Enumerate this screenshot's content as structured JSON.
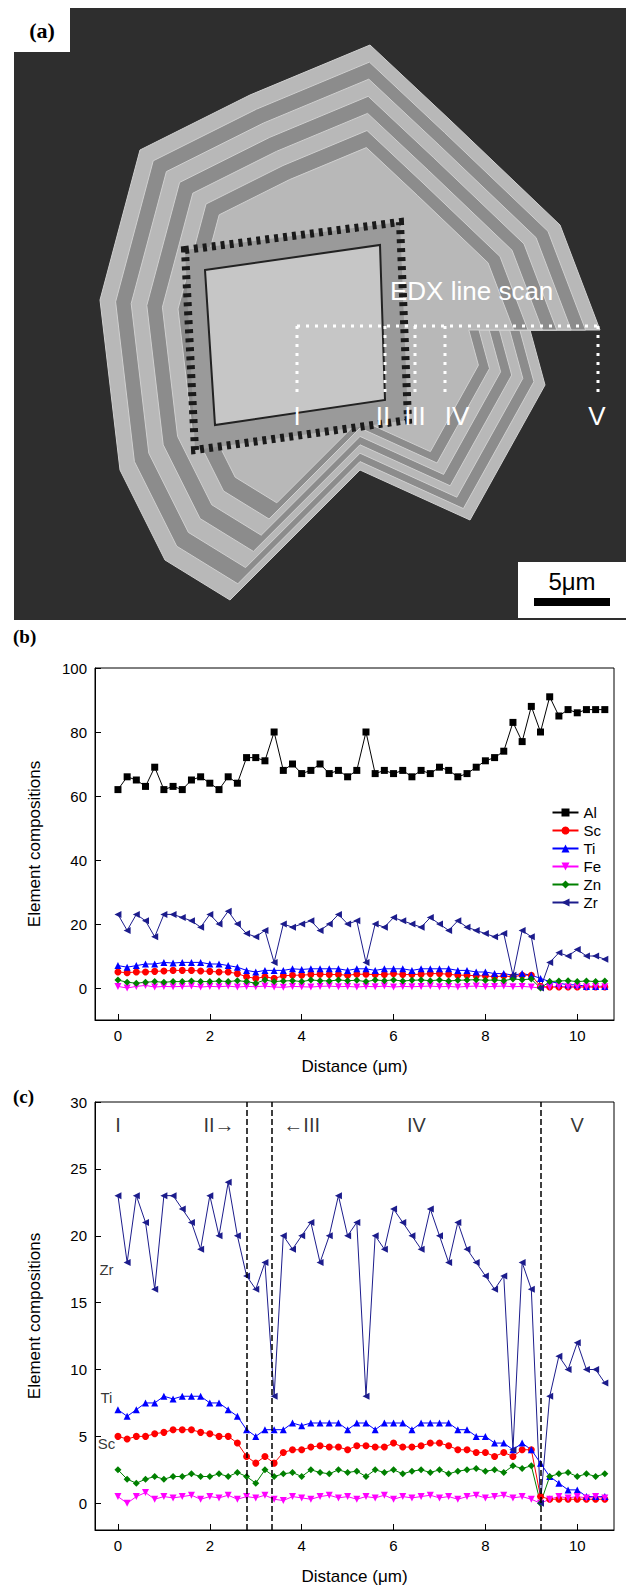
{
  "panel_a": {
    "label": "(a)",
    "annotation": "EDX line scan",
    "line_scan_points": [
      "I",
      "II",
      "III",
      "IV",
      "V"
    ],
    "scale_bar": "5μm"
  },
  "chart_data": [
    {
      "type": "line",
      "title": "(b)",
      "x_label": "Distance (μm)",
      "y_label": "Element compositions",
      "xlim": [
        -0.5,
        10.8
      ],
      "xticks": [
        0,
        2,
        4,
        6,
        8,
        10
      ],
      "ylim": [
        -10,
        100
      ],
      "yticks": [
        0,
        20,
        40,
        60,
        80,
        100
      ],
      "grid": false,
      "legend": "right",
      "x": [
        0,
        0.2,
        0.4,
        0.6,
        0.8,
        1,
        1.2,
        1.4,
        1.6,
        1.8,
        2,
        2.2,
        2.4,
        2.6,
        2.8,
        3,
        3.2,
        3.4,
        3.6,
        3.8,
        4,
        4.2,
        4.4,
        4.6,
        4.8,
        5,
        5.2,
        5.4,
        5.6,
        5.8,
        6,
        6.2,
        6.4,
        6.6,
        6.8,
        7,
        7.2,
        7.4,
        7.6,
        7.8,
        8,
        8.2,
        8.4,
        8.6,
        8.8,
        9,
        9.2,
        9.4,
        9.6,
        9.8,
        10,
        10.2,
        10.4,
        10.6
      ],
      "series": [
        {
          "name": "Al",
          "color": "#000000",
          "marker": "square",
          "values": [
            62,
            66,
            65,
            63,
            69,
            62,
            63,
            62,
            65,
            66,
            64,
            62,
            66,
            64,
            72,
            72,
            71,
            80,
            68,
            70,
            67,
            68,
            70,
            67,
            68,
            66,
            68,
            80,
            67,
            68,
            67,
            68,
            66,
            68,
            67,
            69,
            68,
            66,
            67,
            69,
            71,
            72,
            74,
            83,
            77,
            88,
            80,
            91,
            85,
            87,
            86,
            87,
            87,
            87
          ]
        },
        {
          "name": "Sc",
          "color": "#ff0000",
          "marker": "circle",
          "values": [
            5,
            4.8,
            5,
            5,
            5.2,
            5.3,
            5.5,
            5.5,
            5.5,
            5.3,
            5.2,
            5,
            5,
            4.5,
            3.5,
            3,
            3.5,
            3,
            3.8,
            4,
            4,
            4.2,
            4.3,
            4.2,
            4.2,
            4,
            4.3,
            4.3,
            4.2,
            4.2,
            4.5,
            4.2,
            4.2,
            4.3,
            4.5,
            4.5,
            4.3,
            4,
            4,
            3.8,
            3.8,
            3.5,
            3.8,
            3.5,
            4,
            4,
            0.5,
            0.3,
            0.3,
            0.3,
            0.3,
            0.3,
            0.3,
            0.3
          ]
        },
        {
          "name": "Ti",
          "color": "#0000ff",
          "marker": "triangle",
          "values": [
            7,
            6.5,
            7,
            7.5,
            7.5,
            8,
            7.8,
            8,
            8,
            8,
            7.5,
            7.5,
            7,
            6.5,
            5.5,
            5,
            5.5,
            5.5,
            5.5,
            6,
            5.8,
            6,
            6,
            6,
            6,
            5.5,
            6,
            6,
            5.5,
            6,
            6,
            6,
            5.5,
            6,
            6,
            6,
            6,
            5.5,
            5.5,
            5,
            5,
            4.5,
            4.5,
            4,
            4.5,
            4,
            3,
            2,
            1.5,
            1,
            1,
            0.5,
            0.5,
            0.5
          ]
        },
        {
          "name": "Fe",
          "color": "#ff00ff",
          "marker": "down-triangle",
          "values": [
            0.5,
            0,
            0.5,
            0.8,
            0.3,
            0.5,
            0.4,
            0.5,
            0.6,
            0.3,
            0.5,
            0.4,
            0.6,
            0.3,
            0.5,
            0.4,
            0.6,
            0.3,
            0.2,
            0.5,
            0.4,
            0.3,
            0.5,
            0.6,
            0.4,
            0.5,
            0.3,
            0.5,
            0.4,
            0.6,
            0.3,
            0.5,
            0.4,
            0.5,
            0.6,
            0.4,
            0.5,
            0.3,
            0.5,
            0.6,
            0.4,
            0.5,
            0.6,
            0.4,
            0.5,
            0.3,
            0,
            0.3,
            0.5,
            0.4,
            0.5,
            0.4,
            0.5,
            0.4
          ]
        },
        {
          "name": "Zn",
          "color": "#008000",
          "marker": "diamond",
          "values": [
            2.5,
            1.8,
            1.5,
            1.8,
            2,
            1.8,
            2,
            2,
            2.2,
            2,
            2,
            2.2,
            2,
            2.3,
            2,
            1.5,
            2.5,
            2,
            2.2,
            2.3,
            2,
            2.5,
            2.3,
            2.2,
            2.5,
            2.3,
            2.4,
            2,
            2.5,
            2.3,
            2.5,
            2.2,
            2.4,
            2.5,
            2.3,
            2.5,
            2.2,
            2.4,
            2.5,
            2.6,
            2.4,
            2.5,
            2.3,
            2.8,
            2.6,
            2.8,
            0,
            2,
            2.2,
            2.3,
            2,
            2.2,
            2,
            2.2
          ]
        },
        {
          "name": "Zr",
          "color": "#1c1c8c",
          "marker": "left-triangle",
          "values": [
            23,
            18,
            23,
            21,
            16,
            23,
            23,
            22,
            21,
            19,
            23,
            20,
            24,
            20,
            17,
            16,
            18,
            8,
            20,
            19,
            20,
            21,
            18,
            20,
            23,
            20,
            21,
            8,
            20,
            19,
            22,
            21,
            20,
            19,
            22,
            20,
            18,
            21,
            19,
            18,
            17,
            16,
            17,
            4,
            18,
            16,
            0,
            8,
            11,
            10,
            12,
            10,
            10,
            9
          ]
        }
      ]
    },
    {
      "type": "line",
      "title": "(c)",
      "x_label": "Distance (μm)",
      "y_label": "Element compositions",
      "xlim": [
        -0.5,
        10.8
      ],
      "xticks": [
        0,
        2,
        4,
        6,
        8,
        10
      ],
      "ylim": [
        -2,
        30
      ],
      "yticks": [
        0,
        5,
        10,
        15,
        20,
        25,
        30
      ],
      "grid": false,
      "vlines": [
        2.8,
        3.35,
        9.2
      ],
      "region_labels": [
        {
          "text": "I",
          "x": 0,
          "y": 28.3
        },
        {
          "text": "II→",
          "x": 2.2,
          "y": 28.3
        },
        {
          "text": "←III",
          "x": 4.0,
          "y": 28.3
        },
        {
          "text": "IV",
          "x": 6.5,
          "y": 28.3
        },
        {
          "text": "V",
          "x": 10,
          "y": 28.3
        }
      ],
      "series_labels": [
        {
          "text": "Zr",
          "x": -0.25,
          "y": 17.5
        },
        {
          "text": "Ti",
          "x": -0.25,
          "y": 7.9
        },
        {
          "text": "Sc",
          "x": -0.25,
          "y": 4.5
        }
      ],
      "x": [
        0,
        0.2,
        0.4,
        0.6,
        0.8,
        1,
        1.2,
        1.4,
        1.6,
        1.8,
        2,
        2.2,
        2.4,
        2.6,
        2.8,
        3,
        3.2,
        3.4,
        3.6,
        3.8,
        4,
        4.2,
        4.4,
        4.6,
        4.8,
        5,
        5.2,
        5.4,
        5.6,
        5.8,
        6,
        6.2,
        6.4,
        6.6,
        6.8,
        7,
        7.2,
        7.4,
        7.6,
        7.8,
        8,
        8.2,
        8.4,
        8.6,
        8.8,
        9,
        9.2,
        9.4,
        9.6,
        9.8,
        10,
        10.2,
        10.4,
        10.6
      ],
      "series": [
        {
          "name": "Sc",
          "color": "#ff0000",
          "marker": "circle",
          "values": [
            5,
            4.8,
            5,
            5,
            5.2,
            5.3,
            5.5,
            5.5,
            5.5,
            5.3,
            5.2,
            5,
            5,
            4.5,
            3.5,
            3,
            3.5,
            3,
            3.8,
            4,
            4,
            4.2,
            4.3,
            4.2,
            4.2,
            4,
            4.3,
            4.3,
            4.2,
            4.2,
            4.5,
            4.2,
            4.2,
            4.3,
            4.5,
            4.5,
            4.3,
            4,
            4,
            3.8,
            3.8,
            3.5,
            3.8,
            3.5,
            4,
            4,
            0.5,
            0.3,
            0.3,
            0.3,
            0.3,
            0.3,
            0.3,
            0.3
          ]
        },
        {
          "name": "Ti",
          "color": "#0000ff",
          "marker": "triangle",
          "values": [
            7,
            6.5,
            7,
            7.5,
            7.5,
            8,
            7.8,
            8,
            8,
            8,
            7.5,
            7.5,
            7,
            6.5,
            5.5,
            5,
            5.5,
            5.5,
            5.5,
            6,
            5.8,
            6,
            6,
            6,
            6,
            5.5,
            6,
            6,
            5.5,
            6,
            6,
            6,
            5.5,
            6,
            6,
            6,
            6,
            5.5,
            5.5,
            5,
            5,
            4.5,
            4.5,
            4,
            4.5,
            4,
            3,
            2,
            1.5,
            1,
            1,
            0.5,
            0.5,
            0.5
          ]
        },
        {
          "name": "Fe",
          "color": "#ff00ff",
          "marker": "down-triangle",
          "values": [
            0.5,
            0,
            0.5,
            0.8,
            0.3,
            0.5,
            0.4,
            0.5,
            0.6,
            0.3,
            0.5,
            0.4,
            0.6,
            0.3,
            0.5,
            0.4,
            0.6,
            0.3,
            0.2,
            0.5,
            0.4,
            0.3,
            0.5,
            0.6,
            0.4,
            0.5,
            0.3,
            0.5,
            0.4,
            0.6,
            0.3,
            0.5,
            0.4,
            0.5,
            0.6,
            0.4,
            0.5,
            0.3,
            0.5,
            0.6,
            0.4,
            0.5,
            0.6,
            0.4,
            0.5,
            0.3,
            0,
            0.3,
            0.5,
            0.4,
            0.5,
            0.4,
            0.5,
            0.4
          ]
        },
        {
          "name": "Zn",
          "color": "#008000",
          "marker": "diamond",
          "values": [
            2.5,
            1.8,
            1.5,
            1.8,
            2,
            1.8,
            2,
            2,
            2.2,
            2,
            2,
            2.2,
            2,
            2.3,
            2,
            1.5,
            2.5,
            2,
            2.2,
            2.3,
            2,
            2.5,
            2.3,
            2.2,
            2.5,
            2.3,
            2.4,
            2,
            2.5,
            2.3,
            2.5,
            2.2,
            2.4,
            2.5,
            2.3,
            2.5,
            2.2,
            2.4,
            2.5,
            2.6,
            2.4,
            2.5,
            2.3,
            2.8,
            2.6,
            2.8,
            0,
            2,
            2.2,
            2.3,
            2,
            2.2,
            2,
            2.2
          ]
        },
        {
          "name": "Zr",
          "color": "#1c1c8c",
          "marker": "left-triangle",
          "values": [
            23,
            18,
            23,
            21,
            16,
            23,
            23,
            22,
            21,
            19,
            23,
            20,
            24,
            20,
            17,
            16,
            18,
            8,
            20,
            19,
            20,
            21,
            18,
            20,
            23,
            20,
            21,
            8,
            20,
            19,
            22,
            21,
            20,
            19,
            22,
            20,
            18,
            21,
            19,
            18,
            17,
            16,
            17,
            4,
            18,
            16,
            0,
            8,
            11,
            10,
            12,
            10,
            10,
            9
          ]
        }
      ]
    }
  ]
}
